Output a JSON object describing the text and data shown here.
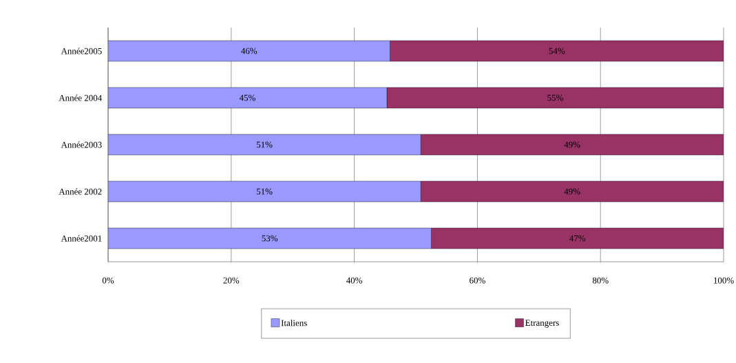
{
  "chart_data": {
    "type": "bar",
    "orientation": "horizontal",
    "stacked": true,
    "categories": [
      "Année2005",
      "Année 2004",
      "Année2003",
      "Année 2002",
      "Année2001"
    ],
    "series": [
      {
        "name": "Italiens",
        "color": "#9999ff",
        "values": [
          45.8,
          45.3,
          50.8,
          50.8,
          52.5
        ],
        "value_labels": [
          "46%",
          "45%",
          "51%",
          "51%",
          "53%"
        ]
      },
      {
        "name": "Etrangers",
        "color": "#993366",
        "values": [
          54.2,
          54.7,
          49.2,
          49.2,
          47.5
        ],
        "value_labels": [
          "54%",
          "55%",
          "49%",
          "49%",
          "47%"
        ]
      }
    ],
    "xlim": [
      0,
      100
    ],
    "xticks": [
      {
        "value": 0,
        "label": "0%"
      },
      {
        "value": 20,
        "label": "20%"
      },
      {
        "value": 40,
        "label": "40%"
      },
      {
        "value": 60,
        "label": "60%"
      },
      {
        "value": 80,
        "label": "80%"
      },
      {
        "value": 100,
        "label": "100%"
      }
    ],
    "grid": "x",
    "legend": "bottom"
  }
}
